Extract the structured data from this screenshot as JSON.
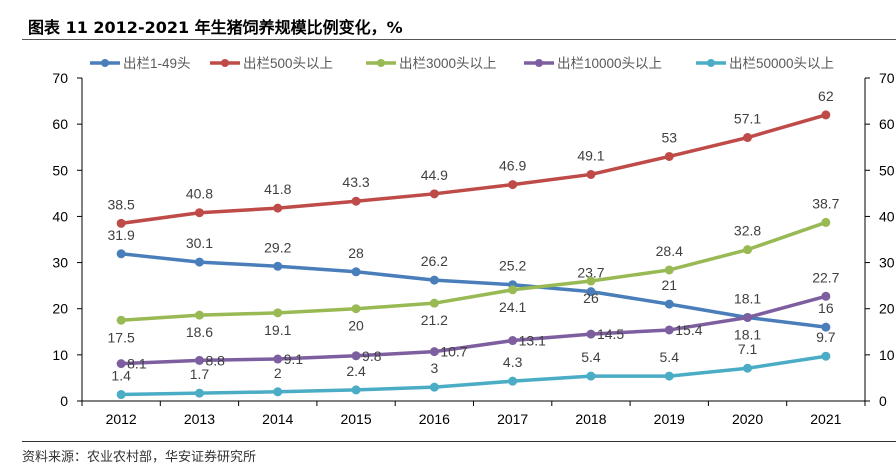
{
  "title": "图表 11 2012-2021 年生猪饲养规模比例变化，%",
  "source": "资料来源：农业农村部，华安证券研究所",
  "chart_data": {
    "type": "line",
    "title": "图表 11 2012-2021 年生猪饲养规模比例变化，%",
    "categories": [
      "2012",
      "2013",
      "2014",
      "2015",
      "2016",
      "2017",
      "2018",
      "2019",
      "2020",
      "2021"
    ],
    "ylim": [
      0,
      70
    ],
    "yticks": [
      0,
      10,
      20,
      30,
      40,
      50,
      60,
      70
    ],
    "y2ticks": [
      0,
      10,
      20,
      30,
      40,
      50,
      60,
      70
    ],
    "legend_position": "top",
    "grid": false,
    "series": [
      {
        "name": "出栏1-49头",
        "color": "#4A7EBB",
        "label_pos": "above",
        "values": [
          31.9,
          30.1,
          29.2,
          28,
          26.2,
          25.2,
          23.7,
          21,
          18.1,
          16
        ]
      },
      {
        "name": "出栏500头以上",
        "color": "#BE4B48",
        "label_pos": "above",
        "values": [
          38.5,
          40.8,
          41.8,
          43.3,
          44.9,
          46.9,
          49.1,
          53,
          57.1,
          62
        ]
      },
      {
        "name": "出栏3000头以上",
        "color": "#98B954",
        "label_pos": "below",
        "values": [
          17.5,
          18.6,
          19.1,
          20,
          21.2,
          24.1,
          26,
          28.4,
          32.8,
          38.7
        ]
      },
      {
        "name": "出栏10000头以上",
        "color": "#7D5FA0",
        "label_pos": "right",
        "values": [
          8.1,
          8.8,
          9.1,
          9.8,
          10.7,
          13.1,
          14.5,
          15.4,
          18.1,
          22.7
        ]
      },
      {
        "name": "出栏50000头以上",
        "color": "#4BACC6",
        "label_pos": "above",
        "values": [
          1.4,
          1.7,
          2,
          2.4,
          3,
          4.3,
          5.4,
          5.4,
          7.1,
          9.7
        ]
      }
    ]
  }
}
